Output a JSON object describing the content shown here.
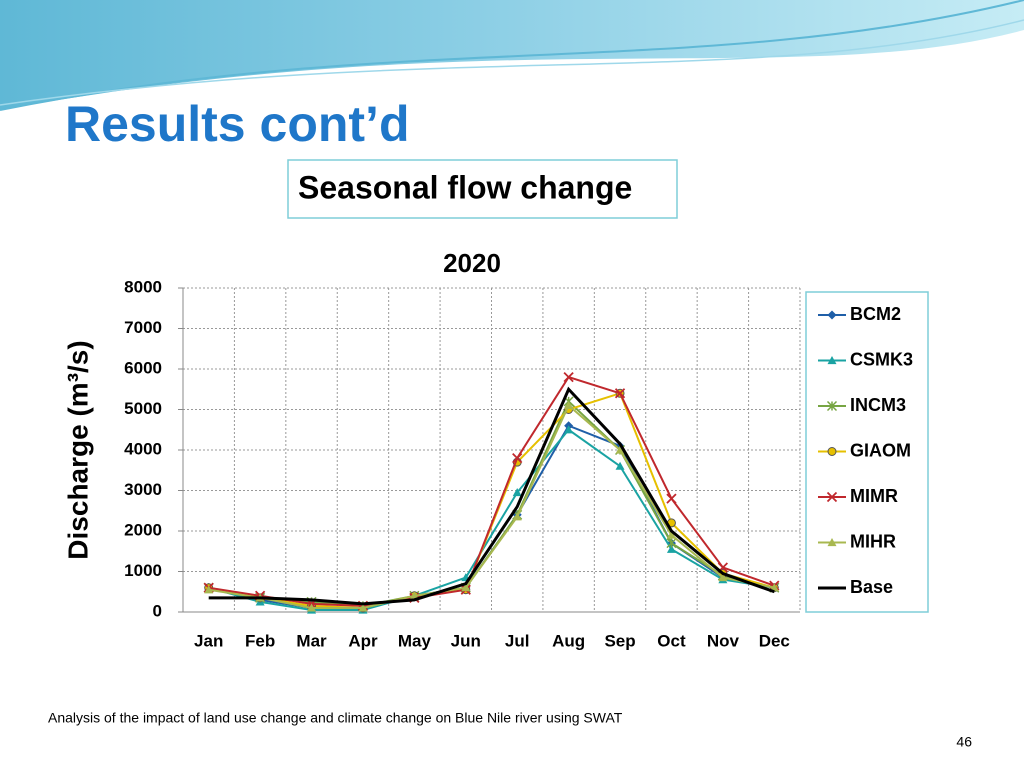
{
  "title": "Results cont’d",
  "subtitle": "Seasonal  flow change",
  "footnote": "Analysis of the impact of land use change and climate change on Blue Nile river using SWAT",
  "page_number": "46",
  "chart_data": {
    "type": "line",
    "title": "2020",
    "y_label": "Discharge (m³/s)",
    "categories": [
      "Jan",
      "Feb",
      "Mar",
      "Apr",
      "May",
      "Jun",
      "Jul",
      "Aug",
      "Sep",
      "Oct",
      "Nov",
      "Dec"
    ],
    "ylim": [
      0,
      8000
    ],
    "yticks": [
      0,
      1000,
      2000,
      3000,
      4000,
      5000,
      6000,
      7000,
      8000
    ],
    "grid": true,
    "legend": "right",
    "series": [
      {
        "name": "BCM2",
        "color": "#1f5fa8",
        "marker": "diamond",
        "values": [
          600,
          300,
          100,
          100,
          400,
          600,
          2400,
          4600,
          4100,
          1700,
          850,
          600
        ]
      },
      {
        "name": "CSMK3",
        "color": "#1aa3a3",
        "marker": "triangle",
        "values": [
          600,
          250,
          50,
          50,
          400,
          850,
          2950,
          4500,
          3600,
          1550,
          800,
          600
        ]
      },
      {
        "name": "INCM3",
        "color": "#77a543",
        "marker": "star",
        "values": [
          600,
          350,
          250,
          150,
          400,
          600,
          2400,
          5200,
          4000,
          1700,
          900,
          600
        ]
      },
      {
        "name": "GIAOM",
        "color": "#e6c000",
        "marker": "circle",
        "values": [
          600,
          350,
          150,
          100,
          400,
          550,
          3700,
          5000,
          5400,
          2200,
          950,
          600
        ]
      },
      {
        "name": "MIMR",
        "color": "#c0282d",
        "marker": "x",
        "values": [
          600,
          400,
          200,
          150,
          350,
          550,
          3800,
          5800,
          5400,
          2800,
          1100,
          650
        ]
      },
      {
        "name": "MIHR",
        "color": "#a8b850",
        "marker": "triangle",
        "values": [
          550,
          350,
          100,
          100,
          400,
          600,
          2350,
          5100,
          4000,
          1900,
          850,
          600
        ]
      },
      {
        "name": "Base",
        "color": "#000000",
        "marker": "none",
        "values": [
          350,
          350,
          300,
          200,
          300,
          700,
          2600,
          5500,
          4150,
          2000,
          950,
          500
        ]
      }
    ]
  }
}
